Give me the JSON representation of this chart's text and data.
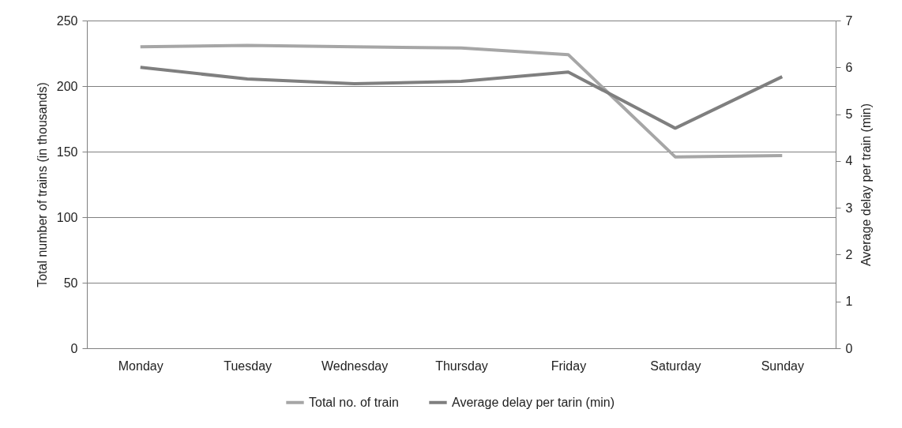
{
  "chart_data": {
    "type": "line",
    "categories": [
      "Monday",
      "Tuesday",
      "Wednesday",
      "Thursday",
      "Friday",
      "Saturday",
      "Sunday"
    ],
    "ylabel": "Total number of trains (in thousands)",
    "y2label": "Average delay per train (min)",
    "series": [
      {
        "name": "Total no. of train",
        "color": "#a6a6a6",
        "values": [
          230,
          231,
          230,
          229,
          224,
          146,
          147
        ]
      },
      {
        "name": "Average delay per tarin (min)",
        "color": "#7f7f7f",
        "axis": "y2",
        "values": [
          6.0,
          5.75,
          5.65,
          5.7,
          5.9,
          4.7,
          5.8
        ]
      }
    ],
    "ylim": [
      0,
      250
    ],
    "yticks": [
      0,
      50,
      100,
      150,
      200,
      250
    ],
    "y2lim": [
      0,
      7
    ],
    "y2ticks": [
      0,
      1,
      2,
      3,
      4,
      5,
      6,
      7
    ],
    "grid": "y",
    "legend": "bottom",
    "marker": "none",
    "line_style": "solid"
  }
}
